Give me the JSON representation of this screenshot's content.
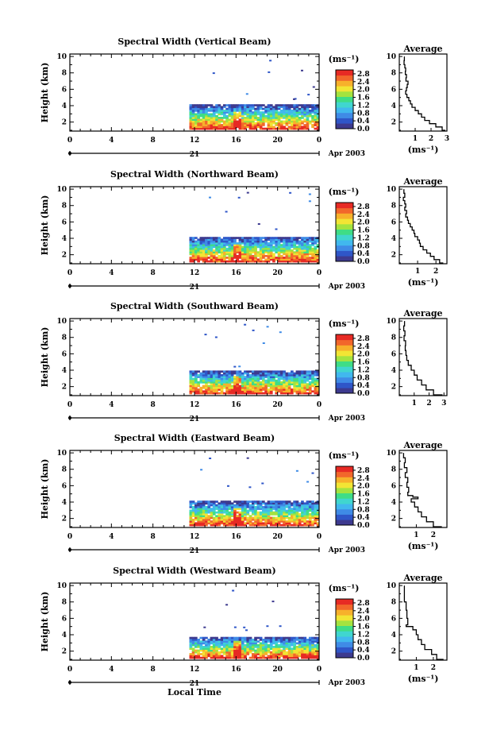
{
  "colors": {
    "palette": [
      "#3d3a8f",
      "#2f56c8",
      "#3f8be6",
      "#41b8ee",
      "#40d6cf",
      "#3fdd86",
      "#a4e33f",
      "#f2e534",
      "#f7b12b",
      "#f2672b",
      "#e72a24"
    ],
    "background": "#ffffff",
    "axes": "#000000"
  },
  "chart_data": [
    {
      "type": "heatmap",
      "title": "Spectral Width (Vertical Beam)",
      "ylabel": "Height (km)",
      "xticks": [
        "0",
        "4",
        "8",
        "12",
        "16",
        "20",
        "0"
      ],
      "yticks": [
        "2",
        "4",
        "6",
        "8",
        "10"
      ],
      "xlim": [
        0,
        24
      ],
      "ylim": [
        0.9,
        10.3
      ],
      "day_label": "21",
      "date_label": "Apr 2003",
      "colorbar": {
        "unit": "(ms⁻¹)",
        "ticks": [
          "2.8",
          "2.4",
          "2.0",
          "1.6",
          "1.2",
          "0.8",
          "0.4",
          "0.0"
        ],
        "range": [
          0,
          3.0
        ]
      },
      "data_time_range_h": [
        11.5,
        23.8
      ],
      "echo_top_km": 4.0,
      "profile": {
        "title": "Average",
        "xticks": [
          "1",
          "2",
          "3"
        ],
        "xlabel": "(ms⁻¹)",
        "xlim": [
          0,
          3.0
        ],
        "yticks": [
          "2",
          "4",
          "6",
          "8",
          "10"
        ],
        "points": [
          [
            0.32,
            10.0
          ],
          [
            0.3,
            9.5
          ],
          [
            0.35,
            9.0
          ],
          [
            0.4,
            8.6
          ],
          [
            0.38,
            8.2
          ],
          [
            0.45,
            7.8
          ],
          [
            0.42,
            7.4
          ],
          [
            0.55,
            7.0
          ],
          [
            0.5,
            6.6
          ],
          [
            0.45,
            6.2
          ],
          [
            0.4,
            5.8
          ],
          [
            0.48,
            5.4
          ],
          [
            0.6,
            5.0
          ],
          [
            0.7,
            4.6
          ],
          [
            0.8,
            4.2
          ],
          [
            1.0,
            3.8
          ],
          [
            1.2,
            3.4
          ],
          [
            1.4,
            3.0
          ],
          [
            1.6,
            2.6
          ],
          [
            1.9,
            2.2
          ],
          [
            2.3,
            1.8
          ],
          [
            2.7,
            1.4
          ],
          [
            2.9,
            1.0
          ]
        ]
      }
    },
    {
      "type": "heatmap",
      "title": "Spectral Width (Northward Beam)",
      "ylabel": "Height (km)",
      "xticks": [
        "0",
        "4",
        "8",
        "12",
        "16",
        "20",
        "0"
      ],
      "yticks": [
        "2",
        "4",
        "6",
        "8",
        "10"
      ],
      "xlim": [
        0,
        24
      ],
      "ylim": [
        0.9,
        10.3
      ],
      "day_label": "21",
      "date_label": "Apr 2003",
      "colorbar": {
        "unit": "(ms⁻¹)",
        "ticks": [
          "2.8",
          "2.4",
          "2.0",
          "1.6",
          "1.2",
          "0.8",
          "0.4",
          "0.0"
        ],
        "range": [
          0,
          3.0
        ]
      },
      "data_time_range_h": [
        11.5,
        23.8
      ],
      "echo_top_km": 4.0,
      "profile": {
        "title": "Average",
        "xticks": [
          "1",
          "2"
        ],
        "xlabel": "(ms⁻¹)",
        "xlim": [
          0,
          2.6
        ],
        "yticks": [
          "2",
          "4",
          "6",
          "8",
          "10"
        ],
        "points": [
          [
            0.25,
            10.0
          ],
          [
            0.3,
            9.5
          ],
          [
            0.22,
            9.0
          ],
          [
            0.3,
            8.6
          ],
          [
            0.35,
            8.2
          ],
          [
            0.3,
            7.8
          ],
          [
            0.4,
            7.4
          ],
          [
            0.35,
            7.0
          ],
          [
            0.45,
            6.6
          ],
          [
            0.5,
            6.2
          ],
          [
            0.6,
            5.8
          ],
          [
            0.7,
            5.4
          ],
          [
            0.8,
            5.0
          ],
          [
            0.85,
            4.6
          ],
          [
            1.0,
            4.2
          ],
          [
            1.1,
            3.8
          ],
          [
            1.15,
            3.4
          ],
          [
            1.3,
            3.0
          ],
          [
            1.5,
            2.6
          ],
          [
            1.7,
            2.2
          ],
          [
            1.9,
            1.8
          ],
          [
            2.2,
            1.4
          ],
          [
            2.4,
            1.0
          ]
        ]
      }
    },
    {
      "type": "heatmap",
      "title": "Spectral Width (Southward Beam)",
      "ylabel": "Height (km)",
      "xticks": [
        "0",
        "4",
        "8",
        "12",
        "16",
        "20",
        "0"
      ],
      "yticks": [
        "2",
        "4",
        "6",
        "8",
        "10"
      ],
      "xlim": [
        0,
        24
      ],
      "ylim": [
        0.9,
        10.3
      ],
      "day_label": "21",
      "date_label": "Apr 2003",
      "colorbar": {
        "unit": "(ms⁻¹)",
        "ticks": [
          "2.8",
          "2.4",
          "2.0",
          "1.6",
          "1.2",
          "0.8",
          "0.4",
          "0.0"
        ],
        "range": [
          0,
          3.0
        ]
      },
      "data_time_range_h": [
        11.5,
        23.8
      ],
      "echo_top_km": 3.8,
      "profile": {
        "title": "Average",
        "xticks": [
          "1",
          "2",
          "3"
        ],
        "xlabel": "",
        "xlim": [
          0,
          3.2
        ],
        "yticks": [
          "2",
          "4",
          "6",
          "8",
          "10"
        ],
        "points": [
          [
            0.35,
            10.0
          ],
          [
            0.3,
            9.4
          ],
          [
            0.38,
            8.8
          ],
          [
            0.32,
            8.2
          ],
          [
            0.42,
            7.6
          ],
          [
            0.4,
            7.0
          ],
          [
            0.45,
            6.4
          ],
          [
            0.5,
            5.8
          ],
          [
            0.6,
            5.2
          ],
          [
            0.8,
            4.6
          ],
          [
            1.0,
            4.0
          ],
          [
            1.2,
            3.4
          ],
          [
            1.5,
            2.8
          ],
          [
            1.8,
            2.2
          ],
          [
            2.3,
            1.6
          ],
          [
            2.9,
            1.0
          ]
        ]
      }
    },
    {
      "type": "heatmap",
      "title": "Spectral Width (Eastward Beam)",
      "ylabel": "Height (km)",
      "xticks": [
        "0",
        "4",
        "8",
        "12",
        "16",
        "20",
        "0"
      ],
      "yticks": [
        "2",
        "4",
        "6",
        "8",
        "10"
      ],
      "xlim": [
        0,
        24
      ],
      "ylim": [
        0.9,
        10.3
      ],
      "day_label": "21",
      "date_label": "Apr 2003",
      "colorbar": {
        "unit": "(ms⁻¹)",
        "ticks": [
          "2.8",
          "2.4",
          "2.0",
          "1.6",
          "1.2",
          "0.8",
          "0.4",
          "0.0"
        ],
        "range": [
          0,
          3.0
        ]
      },
      "data_time_range_h": [
        11.5,
        23.8
      ],
      "echo_top_km": 4.0,
      "profile": {
        "title": "Average",
        "xticks": [
          "1",
          "2"
        ],
        "xlabel": "(ms⁻¹)",
        "xlim": [
          0,
          2.8
        ],
        "yticks": [
          "2",
          "4",
          "6",
          "8",
          "10"
        ],
        "points": [
          [
            0.25,
            10.0
          ],
          [
            0.35,
            9.4
          ],
          [
            0.3,
            8.8
          ],
          [
            0.45,
            8.2
          ],
          [
            0.35,
            7.6
          ],
          [
            0.5,
            7.0
          ],
          [
            0.45,
            6.4
          ],
          [
            0.55,
            5.8
          ],
          [
            0.5,
            5.2
          ],
          [
            0.8,
            4.8
          ],
          [
            1.1,
            4.6
          ],
          [
            0.7,
            4.4
          ],
          [
            0.9,
            4.0
          ],
          [
            1.1,
            3.4
          ],
          [
            1.3,
            2.8
          ],
          [
            1.6,
            2.2
          ],
          [
            2.0,
            1.6
          ],
          [
            2.5,
            1.0
          ]
        ]
      }
    },
    {
      "type": "heatmap",
      "title": "Spectral Width (Westward Beam)",
      "ylabel": "Height (km)",
      "xlabel": "Local Time",
      "xticks": [
        "0",
        "4",
        "8",
        "12",
        "16",
        "20",
        "0"
      ],
      "yticks": [
        "2",
        "4",
        "6",
        "8",
        "10"
      ],
      "xlim": [
        0,
        24
      ],
      "ylim": [
        0.9,
        10.3
      ],
      "day_label": "21",
      "date_label": "Apr 2003",
      "colorbar": {
        "unit": "(ms⁻¹)",
        "ticks": [
          "2.8",
          "2.4",
          "2.0",
          "1.6",
          "1.2",
          "0.8",
          "0.4",
          "0.0"
        ],
        "range": [
          0,
          3.0
        ]
      },
      "data_time_range_h": [
        11.5,
        23.8
      ],
      "echo_top_km": 3.6,
      "profile": {
        "title": "Average",
        "xticks": [
          "1",
          "2"
        ],
        "xlabel": "(ms⁻¹)",
        "xlim": [
          0,
          2.8
        ],
        "yticks": [
          "2",
          "4",
          "6",
          "8",
          "10"
        ],
        "points": [
          [
            0.3,
            10.0
          ],
          [
            0.3,
            9.0
          ],
          [
            0.4,
            8.0
          ],
          [
            0.45,
            7.0
          ],
          [
            0.5,
            6.0
          ],
          [
            0.4,
            5.2
          ],
          [
            0.8,
            5.0
          ],
          [
            1.0,
            4.6
          ],
          [
            1.1,
            4.0
          ],
          [
            1.3,
            3.4
          ],
          [
            1.5,
            2.8
          ],
          [
            1.9,
            2.2
          ],
          [
            2.2,
            1.6
          ],
          [
            2.6,
            1.0
          ]
        ]
      }
    }
  ]
}
